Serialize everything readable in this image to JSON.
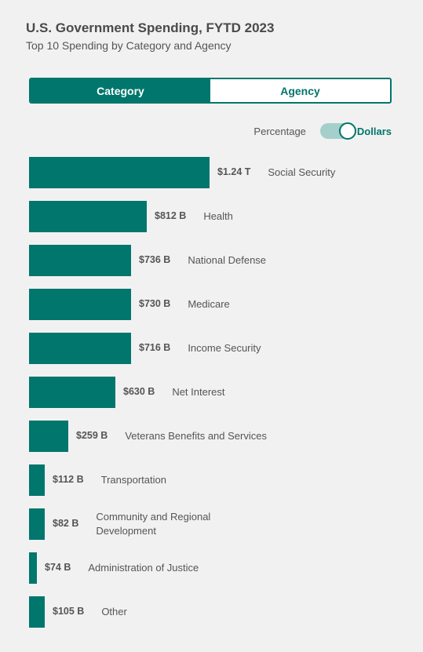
{
  "header": {
    "title": "U.S. Government Spending, FYTD 2023",
    "subtitle": "Top 10 Spending by Category and Agency"
  },
  "tabs": {
    "category": "Category",
    "agency": "Agency"
  },
  "toggle": {
    "left_label": "Percentage",
    "right_label": "Dollars",
    "state": "Dollars"
  },
  "colors": {
    "accent": "#00766c",
    "toggle_track": "#a5cfcb",
    "background": "#f1f1f1"
  },
  "chart_data": {
    "type": "bar",
    "orientation": "horizontal",
    "unit": "USD",
    "categories": [
      "Social Security",
      "Health",
      "National Defense",
      "Medicare",
      "Income Security",
      "Net Interest",
      "Veterans Benefits and Services",
      "Transportation",
      "Community and Regional Development",
      "Administration of Justice",
      "Other"
    ],
    "label_lines": [
      [
        "Social Security"
      ],
      [
        "Health"
      ],
      [
        "National Defense"
      ],
      [
        "Medicare"
      ],
      [
        "Income Security"
      ],
      [
        "Net Interest"
      ],
      [
        "Veterans Benefits and Services"
      ],
      [
        "Transportation"
      ],
      [
        "Community and Regional",
        "Development"
      ],
      [
        "Administration of Justice"
      ],
      [
        "Other"
      ]
    ],
    "values_billions": [
      1240,
      812,
      736,
      730,
      716,
      630,
      259,
      112,
      82,
      74,
      105
    ],
    "value_labels": [
      "$1.24 T",
      "$812 B",
      "$736 B",
      "$730 B",
      "$716 B",
      "$630 B",
      "$259 B",
      "$112 B",
      "$82 B",
      "$74 B",
      "$105 B"
    ]
  }
}
